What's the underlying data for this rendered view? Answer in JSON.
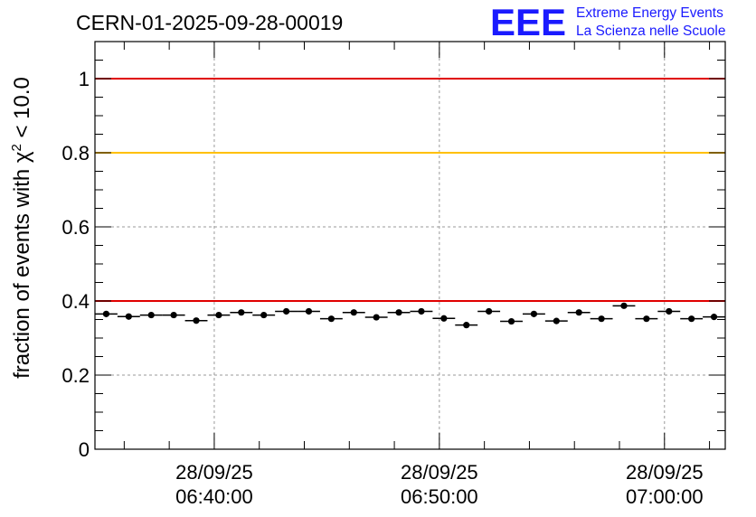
{
  "header": {
    "title": "CERN-01-2025-09-28-00019",
    "logo_text": "EEE",
    "logo_line1": "Extreme Energy Events",
    "logo_line2": "La Scienza nelle Scuole"
  },
  "chart_data": {
    "type": "scatter",
    "title": "CERN-01-2025-09-28-00019",
    "xlabel": "",
    "ylabel": "fraction of events with χ² < 10.0",
    "ylabel_parts": {
      "prefix": "fraction of events with χ",
      "sup": "2",
      "suffix": " < 10.0"
    },
    "xlim": [
      -5.3,
      22.7
    ],
    "x_unit": "minutes after 06:40:00",
    "ylim": [
      0,
      1.1
    ],
    "yticks": [
      0,
      0.2,
      0.4,
      0.6,
      0.8,
      1
    ],
    "ytick_labels": [
      "0",
      "0.2",
      "0.4",
      "0.6",
      "0.8",
      "1"
    ],
    "xticks": [
      {
        "x": 0,
        "date": "28/09/25",
        "time": "06:40:00"
      },
      {
        "x": 10,
        "date": "28/09/25",
        "time": "06:50:00"
      },
      {
        "x": 20,
        "date": "28/09/25",
        "time": "07:00:00"
      }
    ],
    "bin_width": 1,
    "grid": true,
    "reference_lines": [
      {
        "y": 1.0,
        "color": "#e00000"
      },
      {
        "y": 0.8,
        "color": "#ffc000"
      },
      {
        "y": 0.4,
        "color": "#e00000"
      }
    ],
    "series": [
      {
        "name": "fraction",
        "x": [
          -4.8,
          -3.8,
          -2.8,
          -1.8,
          -0.8,
          0.2,
          1.2,
          2.2,
          3.2,
          4.2,
          5.2,
          6.2,
          7.2,
          8.2,
          9.2,
          10.2,
          11.2,
          12.2,
          13.2,
          14.2,
          15.2,
          16.2,
          17.2,
          18.2,
          19.2,
          20.2,
          21.2,
          22.2
        ],
        "y": [
          0.365,
          0.358,
          0.362,
          0.362,
          0.347,
          0.362,
          0.369,
          0.362,
          0.372,
          0.372,
          0.352,
          0.369,
          0.356,
          0.369,
          0.372,
          0.353,
          0.335,
          0.372,
          0.345,
          0.365,
          0.346,
          0.369,
          0.352,
          0.387,
          0.352,
          0.372,
          0.352,
          0.357
        ],
        "error": [
          0.006,
          0.006,
          0.006,
          0.006,
          0.006,
          0.006,
          0.006,
          0.006,
          0.006,
          0.006,
          0.006,
          0.006,
          0.006,
          0.006,
          0.006,
          0.006,
          0.006,
          0.006,
          0.006,
          0.006,
          0.006,
          0.006,
          0.006,
          0.006,
          0.006,
          0.006,
          0.006,
          0.006
        ],
        "color": "#000000"
      }
    ]
  }
}
